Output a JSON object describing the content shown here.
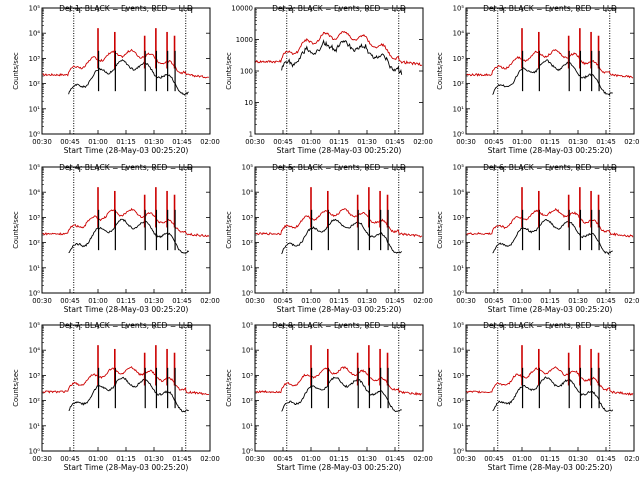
{
  "figure": {
    "xlabel": "Start Time (28-May-03 00:25:20)",
    "ylabel": "Counts/sec"
  },
  "colors": {
    "events": "#000000",
    "lld": "#cc0000",
    "axes": "#000000"
  },
  "chart_data": [
    {
      "type": "line",
      "title": "Det 1: BLACK = Events, RED = LLD",
      "yscale": "log",
      "ylim": [
        1,
        100000
      ],
      "yticks": [
        1,
        10,
        100,
        1000,
        10000,
        100000
      ],
      "yticklabels": [
        "10⁰",
        "10¹",
        "10²",
        "10³",
        "10⁴",
        "10⁵"
      ],
      "xticklabels": [
        "00:30",
        "00:45",
        "01:00",
        "01:15",
        "01:30",
        "01:45",
        "02:00"
      ],
      "markers": [
        "00:47",
        "01:47"
      ],
      "events_baseline": "low"
    },
    {
      "type": "line",
      "title": "Det 2: BLACK = Events, RED = LLD",
      "yscale": "log",
      "ylim": [
        1,
        10000
      ],
      "yticks": [
        1,
        10,
        100,
        1000,
        10000
      ],
      "yticklabels": [
        "1",
        "10",
        "100",
        "1000",
        "10000"
      ],
      "xticklabels": [
        "00:30",
        "00:45",
        "01:00",
        "01:15",
        "01:30",
        "01:45",
        "02:00"
      ],
      "markers": [
        "00:47",
        "01:47"
      ],
      "events_baseline": "high"
    },
    {
      "type": "line",
      "title": "Det 3: BLACK = Events, RED = LLD",
      "yscale": "log",
      "ylim": [
        1,
        100000
      ],
      "yticks": [
        1,
        10,
        100,
        1000,
        10000,
        100000
      ],
      "yticklabels": [
        "10⁰",
        "10¹",
        "10²",
        "10³",
        "10⁴",
        "10⁵"
      ],
      "xticklabels": [
        "00:30",
        "00:45",
        "01:00",
        "01:15",
        "01:30",
        "01:45",
        "02:00"
      ],
      "markers": [
        "00:47",
        "01:47"
      ],
      "events_baseline": "low"
    },
    {
      "type": "line",
      "title": "Det 4: BLACK = Events, RED = LLD",
      "yscale": "log",
      "ylim": [
        1,
        100000
      ],
      "yticks": [
        1,
        10,
        100,
        1000,
        10000,
        100000
      ],
      "yticklabels": [
        "10⁰",
        "10¹",
        "10²",
        "10³",
        "10⁴",
        "10⁵"
      ],
      "xticklabels": [
        "00:30",
        "00:45",
        "01:00",
        "01:15",
        "01:30",
        "01:45",
        "02:00"
      ],
      "markers": [
        "00:47",
        "01:47"
      ],
      "events_baseline": "low"
    },
    {
      "type": "line",
      "title": "Det 5: BLACK = Events, RED = LLD",
      "yscale": "log",
      "ylim": [
        1,
        100000
      ],
      "yticks": [
        1,
        10,
        100,
        1000,
        10000,
        100000
      ],
      "yticklabels": [
        "10⁰",
        "10¹",
        "10²",
        "10³",
        "10⁴",
        "10⁵"
      ],
      "xticklabels": [
        "00:30",
        "00:45",
        "01:00",
        "01:15",
        "01:30",
        "01:45",
        "02:00"
      ],
      "markers": [
        "00:47",
        "01:47"
      ],
      "events_baseline": "low"
    },
    {
      "type": "line",
      "title": "Det 6: BLACK = Events, RED = LLD",
      "yscale": "log",
      "ylim": [
        1,
        100000
      ],
      "yticks": [
        1,
        10,
        100,
        1000,
        10000,
        100000
      ],
      "yticklabels": [
        "10⁰",
        "10¹",
        "10²",
        "10³",
        "10⁴",
        "10⁵"
      ],
      "xticklabels": [
        "00:30",
        "00:45",
        "01:00",
        "01:15",
        "01:30",
        "01:45",
        "02:00"
      ],
      "markers": [
        "00:47",
        "01:47"
      ],
      "events_baseline": "low"
    },
    {
      "type": "line",
      "title": "Det 7: BLACK = Events, RED = LLD",
      "yscale": "log",
      "ylim": [
        1,
        100000
      ],
      "yticks": [
        1,
        10,
        100,
        1000,
        10000,
        100000
      ],
      "yticklabels": [
        "10⁰",
        "10¹",
        "10²",
        "10³",
        "10⁴",
        "10⁵"
      ],
      "xticklabels": [
        "00:30",
        "00:45",
        "01:00",
        "01:15",
        "01:30",
        "01:45",
        "02:00"
      ],
      "markers": [
        "00:47",
        "01:47"
      ],
      "events_baseline": "low"
    },
    {
      "type": "line",
      "title": "Det 8: BLACK = Events, RED = LLD",
      "yscale": "log",
      "ylim": [
        1,
        100000
      ],
      "yticks": [
        1,
        10,
        100,
        1000,
        10000,
        100000
      ],
      "yticklabels": [
        "10⁰",
        "10¹",
        "10²",
        "10³",
        "10⁴",
        "10⁵"
      ],
      "xticklabels": [
        "00:30",
        "00:45",
        "01:00",
        "01:15",
        "01:30",
        "01:45",
        "02:00"
      ],
      "markers": [
        "00:47",
        "01:47"
      ],
      "events_baseline": "low"
    },
    {
      "type": "line",
      "title": "Det 9: BLACK = Events, RED = LLD",
      "yscale": "log",
      "ylim": [
        1,
        100000
      ],
      "yticks": [
        1,
        10,
        100,
        1000,
        10000,
        100000
      ],
      "yticklabels": [
        "10⁰",
        "10¹",
        "10²",
        "10³",
        "10⁴",
        "10⁵"
      ],
      "xticklabels": [
        "00:30",
        "00:45",
        "01:00",
        "01:15",
        "01:30",
        "01:45",
        "02:00"
      ],
      "markers": [
        "00:47",
        "01:47"
      ],
      "events_baseline": "low"
    }
  ]
}
